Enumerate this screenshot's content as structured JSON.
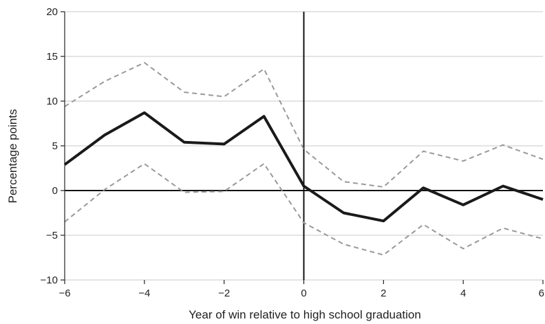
{
  "chart_data": {
    "type": "line",
    "xlabel": "Year of win relative to high school graduation",
    "ylabel": "Percentage points",
    "xlim": [
      -6,
      6
    ],
    "ylim": [
      -10,
      20
    ],
    "x_ticks": [
      -6,
      -4,
      -2,
      0,
      2,
      4,
      6
    ],
    "x_tick_labels": [
      "−6",
      "−4",
      "−2",
      "0",
      "2",
      "4",
      "6"
    ],
    "y_ticks": [
      -10,
      -5,
      0,
      5,
      10,
      15,
      20
    ],
    "y_tick_labels": [
      "−10",
      "−5",
      "0",
      "5",
      "10",
      "15",
      "20"
    ],
    "grid": "horizontal",
    "reference_lines": {
      "x": 0,
      "y": 0
    },
    "x": [
      -6,
      -5,
      -4,
      -3,
      -2,
      -1,
      0,
      1,
      2,
      3,
      4,
      5,
      6
    ],
    "series": [
      {
        "role": "estimate",
        "style": "solid",
        "color": "#1a1a1a",
        "values": [
          2.9,
          6.2,
          8.7,
          5.4,
          5.2,
          8.3,
          0.5,
          -2.5,
          -3.4,
          0.3,
          -1.6,
          0.5,
          -1.0
        ]
      },
      {
        "role": "upper_bound",
        "style": "dashed",
        "color": "#999999",
        "values": [
          9.4,
          12.2,
          14.3,
          11.0,
          10.5,
          13.6,
          4.6,
          1.0,
          0.4,
          4.4,
          3.3,
          5.1,
          3.5
        ]
      },
      {
        "role": "lower_bound",
        "style": "dashed",
        "color": "#999999",
        "values": [
          -3.5,
          0.1,
          3.0,
          -0.2,
          -0.1,
          3.0,
          -3.6,
          -6.0,
          -7.2,
          -3.8,
          -6.5,
          -4.2,
          -5.4
        ]
      }
    ]
  }
}
